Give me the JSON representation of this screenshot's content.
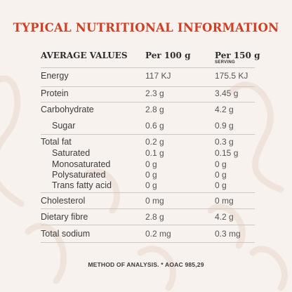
{
  "title": "TYPICAL NUTRITIONAL INFORMATION",
  "headers": {
    "label": "AVERAGE VALUES",
    "per100": "Per 100 g",
    "per150": "Per 150 g",
    "per150_sub": "SERVING"
  },
  "rows": [
    {
      "label": "Energy",
      "per100": "117 KJ",
      "per150": "175.5 KJ"
    },
    {
      "label": "Protein",
      "per100": "2.3 g",
      "per150": "3.45 g"
    },
    {
      "label": "Carbohydrate",
      "per100": "2.8 g",
      "per150": "4.2 g"
    },
    {
      "label": "Sugar",
      "per100": "0.6 g",
      "per150": "0.9 g"
    },
    {
      "label": "Total fat",
      "per100": "0.2 g",
      "per150": "0.3 g"
    },
    {
      "label": "Saturated",
      "per100": "0.1 g",
      "per150": "0.15 g"
    },
    {
      "label": "Monosaturated",
      "per100": "0 g",
      "per150": "0 g"
    },
    {
      "label": "Polysaturated",
      "per100": "0 g",
      "per150": "0 g"
    },
    {
      "label": "Trans fatty acid",
      "per100": "0 g",
      "per150": "0 g"
    },
    {
      "label": "Cholesterol",
      "per100": "0 mg",
      "per150": "0 mg"
    },
    {
      "label": "Dietary fibre",
      "per100": "2.8 g",
      "per150": "4.2 g"
    },
    {
      "label": "Total sodium",
      "per100": "0.2 mg",
      "per150": "0.3 mg"
    }
  ],
  "footnote": "METHOD OF ANALYSIS. * AOAC 985,29",
  "colors": {
    "accent": "#cf3f24",
    "background": "#f7f2ee",
    "rule": "#cfc8c2"
  }
}
